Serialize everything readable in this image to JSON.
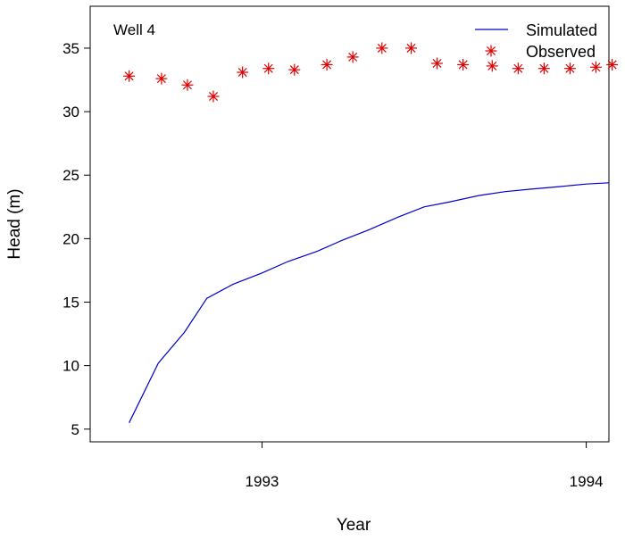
{
  "chart_data": {
    "type": "line",
    "title": "",
    "panel_label": "Well 4",
    "xlabel": "Year",
    "ylabel": "Head (m)",
    "xlim": [
      1992.47,
      1994.07
    ],
    "ylim": [
      4,
      38.3
    ],
    "x_ticks": [
      1993,
      1994
    ],
    "x_tick_labels": [
      "1993",
      "1994"
    ],
    "y_ticks": [
      5,
      10,
      15,
      20,
      25,
      30,
      35
    ],
    "y_tick_labels": [
      "5",
      "10",
      "15",
      "20",
      "25",
      "30",
      "35"
    ],
    "grid": false,
    "legend": {
      "position": "top-right",
      "entries": [
        {
          "label": "Simulated",
          "marker": "line",
          "color": "#0000cd"
        },
        {
          "label": "Observed",
          "marker": "asterisk",
          "color": "#e00000"
        }
      ]
    },
    "series": [
      {
        "name": "Simulated",
        "style": "line",
        "color": "#0000cd",
        "x": [
          1992.59,
          1992.68,
          1992.76,
          1992.83,
          1992.91,
          1993.0,
          1993.08,
          1993.17,
          1993.25,
          1993.33,
          1993.42,
          1993.5,
          1993.58,
          1993.67,
          1993.75,
          1993.83,
          1993.92,
          1994.0,
          1994.07
        ],
        "y": [
          5.5,
          10.2,
          12.6,
          15.3,
          16.4,
          17.3,
          18.2,
          19.0,
          19.9,
          20.7,
          21.7,
          22.5,
          22.9,
          23.4,
          23.7,
          23.9,
          24.1,
          24.3,
          24.4
        ]
      },
      {
        "name": "Observed",
        "style": "asterisk",
        "color": "#e00000",
        "x": [
          1992.59,
          1992.69,
          1992.77,
          1992.85,
          1992.94,
          1993.02,
          1993.1,
          1993.2,
          1993.28,
          1993.37,
          1993.46,
          1993.54,
          1993.62,
          1993.71,
          1993.79,
          1993.87,
          1993.95,
          1994.03,
          1994.08
        ],
        "y": [
          32.8,
          32.6,
          32.1,
          31.2,
          33.1,
          33.4,
          33.3,
          33.7,
          34.3,
          35.0,
          35.0,
          33.8,
          33.7,
          33.6,
          33.4,
          33.4,
          33.4,
          33.5,
          33.7
        ]
      }
    ]
  }
}
